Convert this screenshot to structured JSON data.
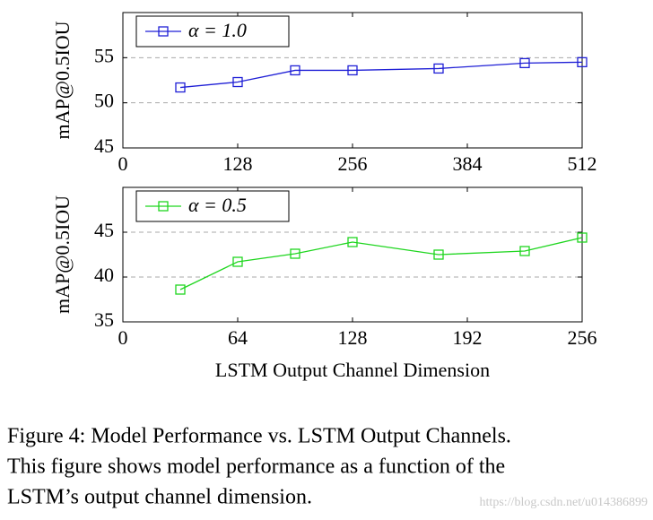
{
  "chart_data": [
    {
      "type": "line",
      "ylabel": "mAP@0.5IOU",
      "x": [
        64,
        128,
        192,
        256,
        352,
        448,
        512
      ],
      "series": [
        {
          "name": "α = 1.0",
          "color": "#1f1fd6",
          "values": [
            51.7,
            52.3,
            53.6,
            53.6,
            53.8,
            54.4,
            54.5
          ]
        }
      ],
      "xlim": [
        0,
        512
      ],
      "xticks": [
        0,
        128,
        256,
        384,
        512
      ],
      "ylim": [
        45,
        60
      ],
      "yticks": [
        45,
        50,
        55
      ],
      "grid": true,
      "legend": "top-left"
    },
    {
      "type": "line",
      "ylabel": "mAP@0.5IOU",
      "xlabel": "LSTM Output Channel Dimension",
      "x": [
        32,
        64,
        96,
        128,
        176,
        224,
        256
      ],
      "series": [
        {
          "name": "α = 0.5",
          "color": "#1fd61f",
          "values": [
            38.6,
            41.7,
            42.6,
            43.9,
            42.5,
            42.9,
            44.4
          ]
        }
      ],
      "xlim": [
        0,
        256
      ],
      "xticks": [
        0,
        64,
        128,
        192,
        256
      ],
      "ylim": [
        35,
        50
      ],
      "yticks": [
        35,
        40,
        45
      ],
      "grid": true,
      "legend": "top-left"
    }
  ],
  "caption": [
    "Figure 4: Model Performance vs. LSTM Output Channels.",
    "This figure shows model performance as a function of the",
    "LSTM’s output channel dimension."
  ],
  "watermark": "https://blog.csdn.net/u014386899"
}
